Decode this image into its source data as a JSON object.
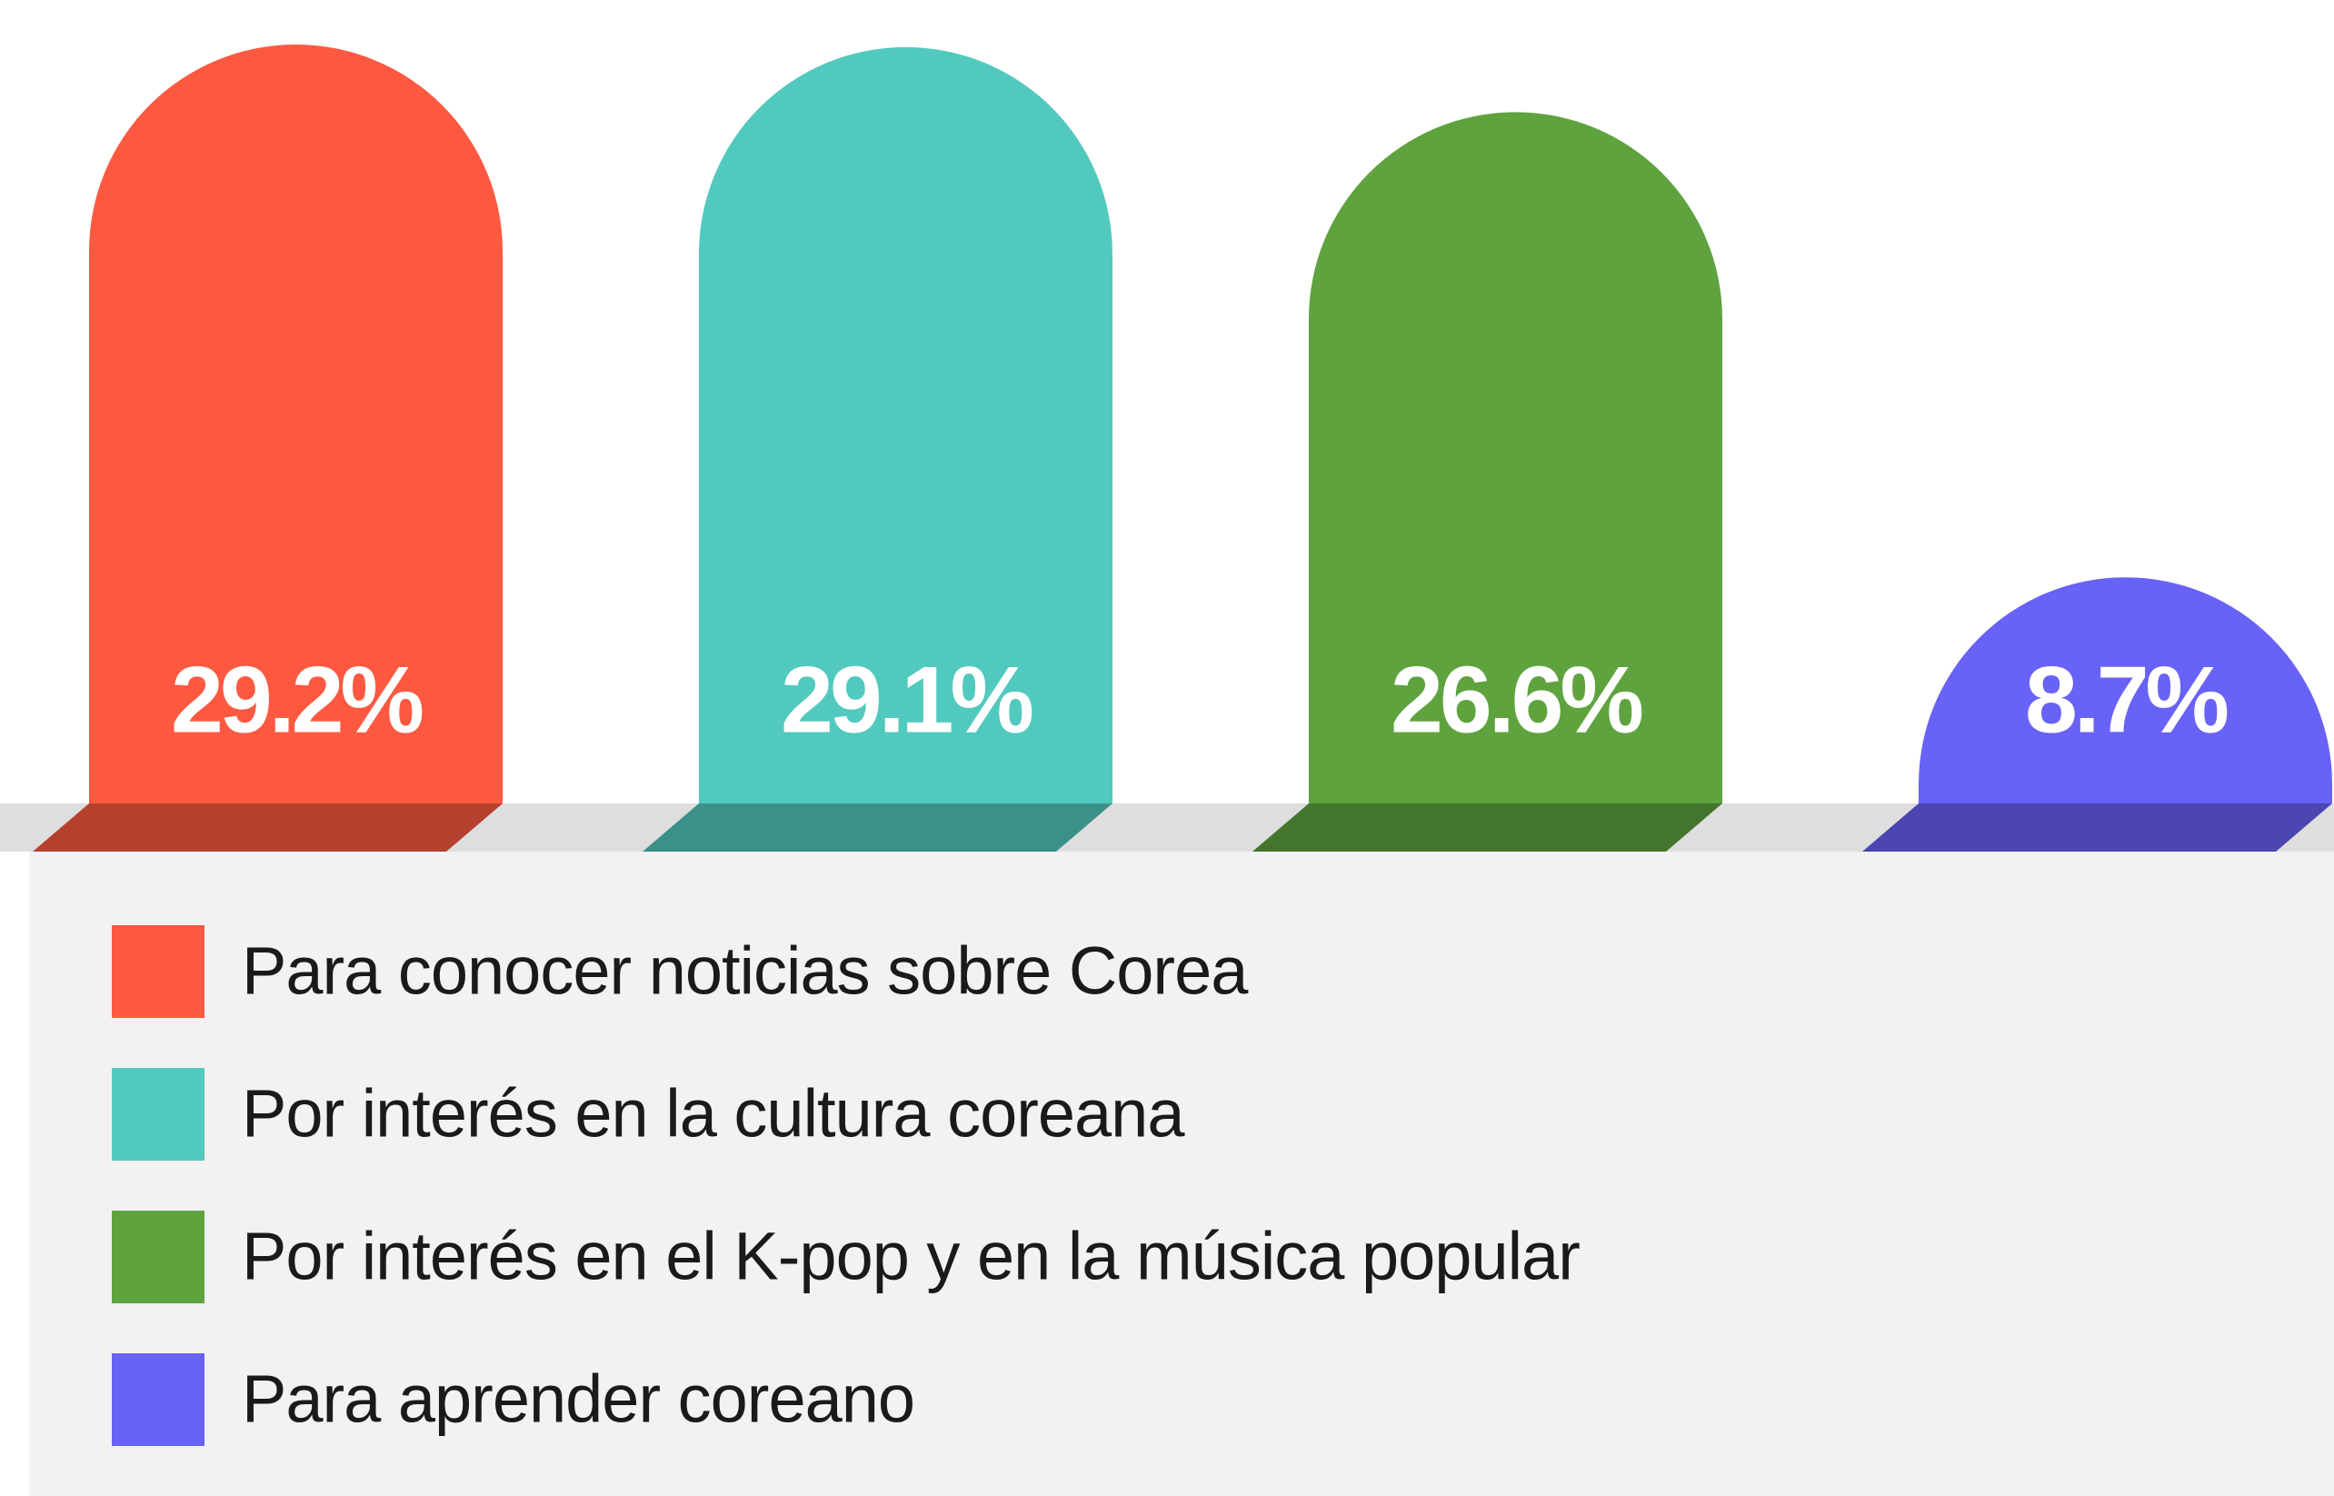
{
  "chart_data": {
    "type": "bar",
    "categories": [
      "Para conocer noticias sobre Corea",
      "Por interés en la cultura coreana",
      "Por interés en el K-pop y en la música popular",
      "Para aprender coreano"
    ],
    "values": [
      29.2,
      29.1,
      26.6,
      8.7
    ],
    "value_labels": [
      "29.2%",
      "29.1%",
      "26.6%",
      "8.7%"
    ],
    "colors": [
      "#fd5940",
      "#52c9be",
      "#5fa33f",
      "#6862f6"
    ],
    "legend": "bottom-left"
  }
}
